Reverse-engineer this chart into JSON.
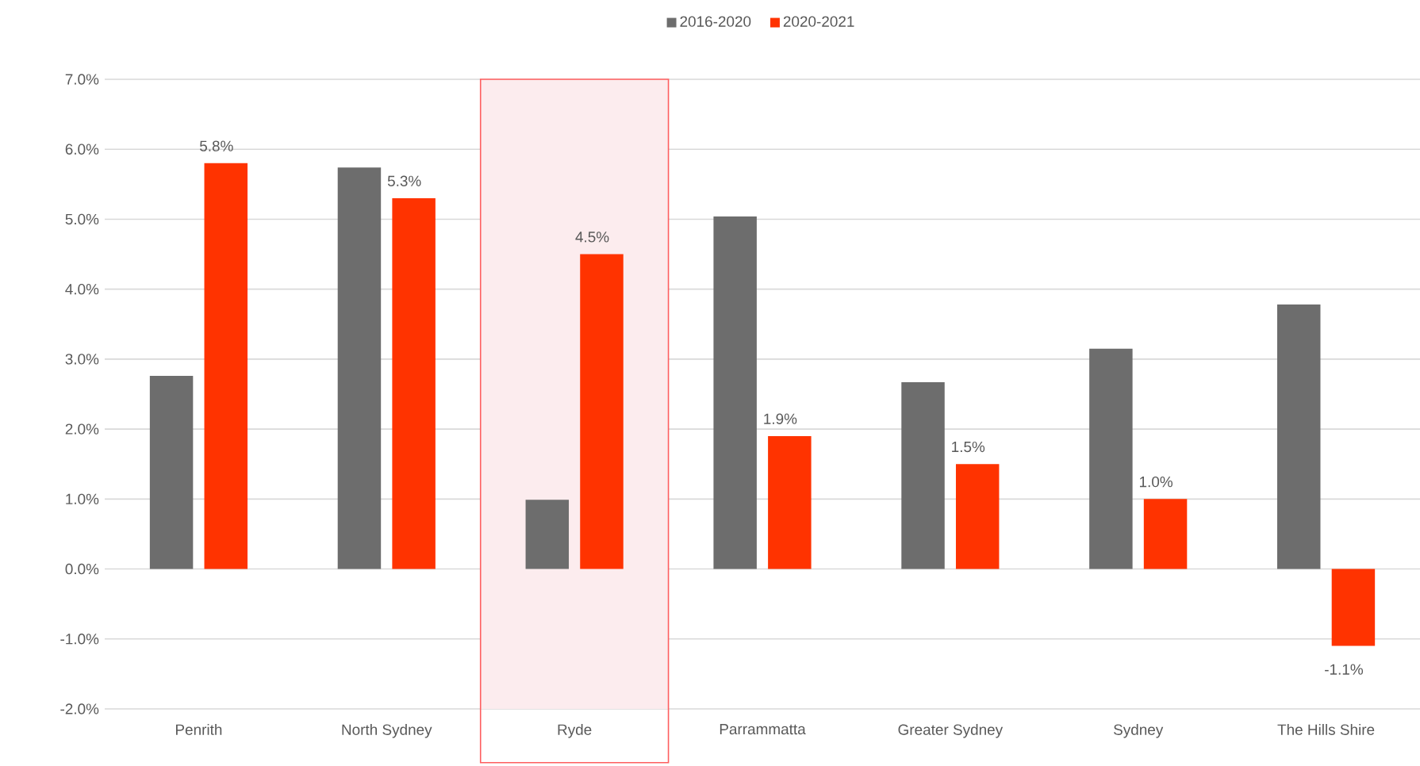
{
  "chart_data": {
    "type": "bar",
    "categories": [
      "Penrith",
      "North Sydney",
      "Ryde",
      "Parrammatta",
      "Greater Sydney",
      "Sydney",
      "The Hills Shire"
    ],
    "series": [
      {
        "name": "2016-2020",
        "color": "#6d6d6d",
        "values": [
          2.76,
          5.74,
          0.99,
          5.04,
          2.67,
          3.15,
          3.78
        ]
      },
      {
        "name": "2020-2021",
        "color": "#ff3300",
        "values": [
          5.8,
          5.3,
          4.5,
          1.9,
          1.5,
          1.0,
          -1.1
        ],
        "value_labels": [
          "5.8%",
          "5.3%",
          "4.5%",
          "1.9%",
          "1.5%",
          "1.0%",
          "-1.1%"
        ]
      }
    ],
    "ylim": [
      -2,
      7
    ],
    "yticks": [
      {
        "value": -2,
        "label": "-2.0%"
      },
      {
        "value": -1,
        "label": "-1.0%"
      },
      {
        "value": 0,
        "label": "0.0%"
      },
      {
        "value": 1,
        "label": "1.0%"
      },
      {
        "value": 2,
        "label": "2.0%"
      },
      {
        "value": 3,
        "label": "3.0%"
      },
      {
        "value": 4,
        "label": "4.0%"
      },
      {
        "value": 5,
        "label": "5.0%"
      },
      {
        "value": 6,
        "label": "6.0%"
      },
      {
        "value": 7,
        "label": "7.0%"
      }
    ],
    "grid": "y",
    "legend": "top",
    "bands": [
      {
        "axis": "x",
        "from": "Ryde",
        "to": "Ryde",
        "color": "#fcecee"
      }
    ]
  }
}
